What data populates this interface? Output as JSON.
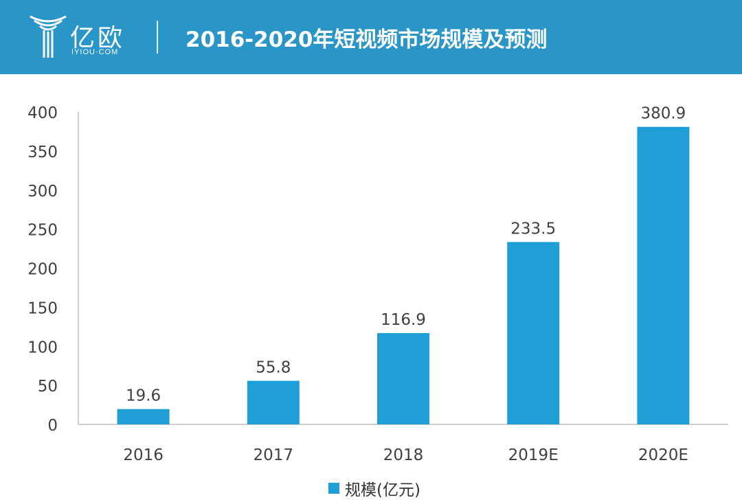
{
  "header": {
    "logo_cn": "亿欧",
    "logo_en": "IYIOU·COM",
    "title": "2016-2020年短视频市场规模及预测"
  },
  "colors": {
    "header_bg": "#2a96c8",
    "bar": "#1f9fd6"
  },
  "chart_data": {
    "type": "bar",
    "categories": [
      "2016",
      "2017",
      "2018",
      "2019E",
      "2020E"
    ],
    "series": [
      {
        "name": "规模(亿元)",
        "values": [
          19.6,
          55.8,
          116.9,
          233.5,
          380.9
        ]
      }
    ],
    "data_labels": [
      "19.6",
      "55.8",
      "116.9",
      "233.5",
      "380.9"
    ],
    "yticks": [
      "0",
      "50",
      "100",
      "150",
      "200",
      "250",
      "300",
      "350",
      "400"
    ],
    "ylim": [
      0,
      400
    ],
    "title": "",
    "xlabel": "",
    "ylabel": "",
    "grid": false,
    "legend": "bottom"
  }
}
